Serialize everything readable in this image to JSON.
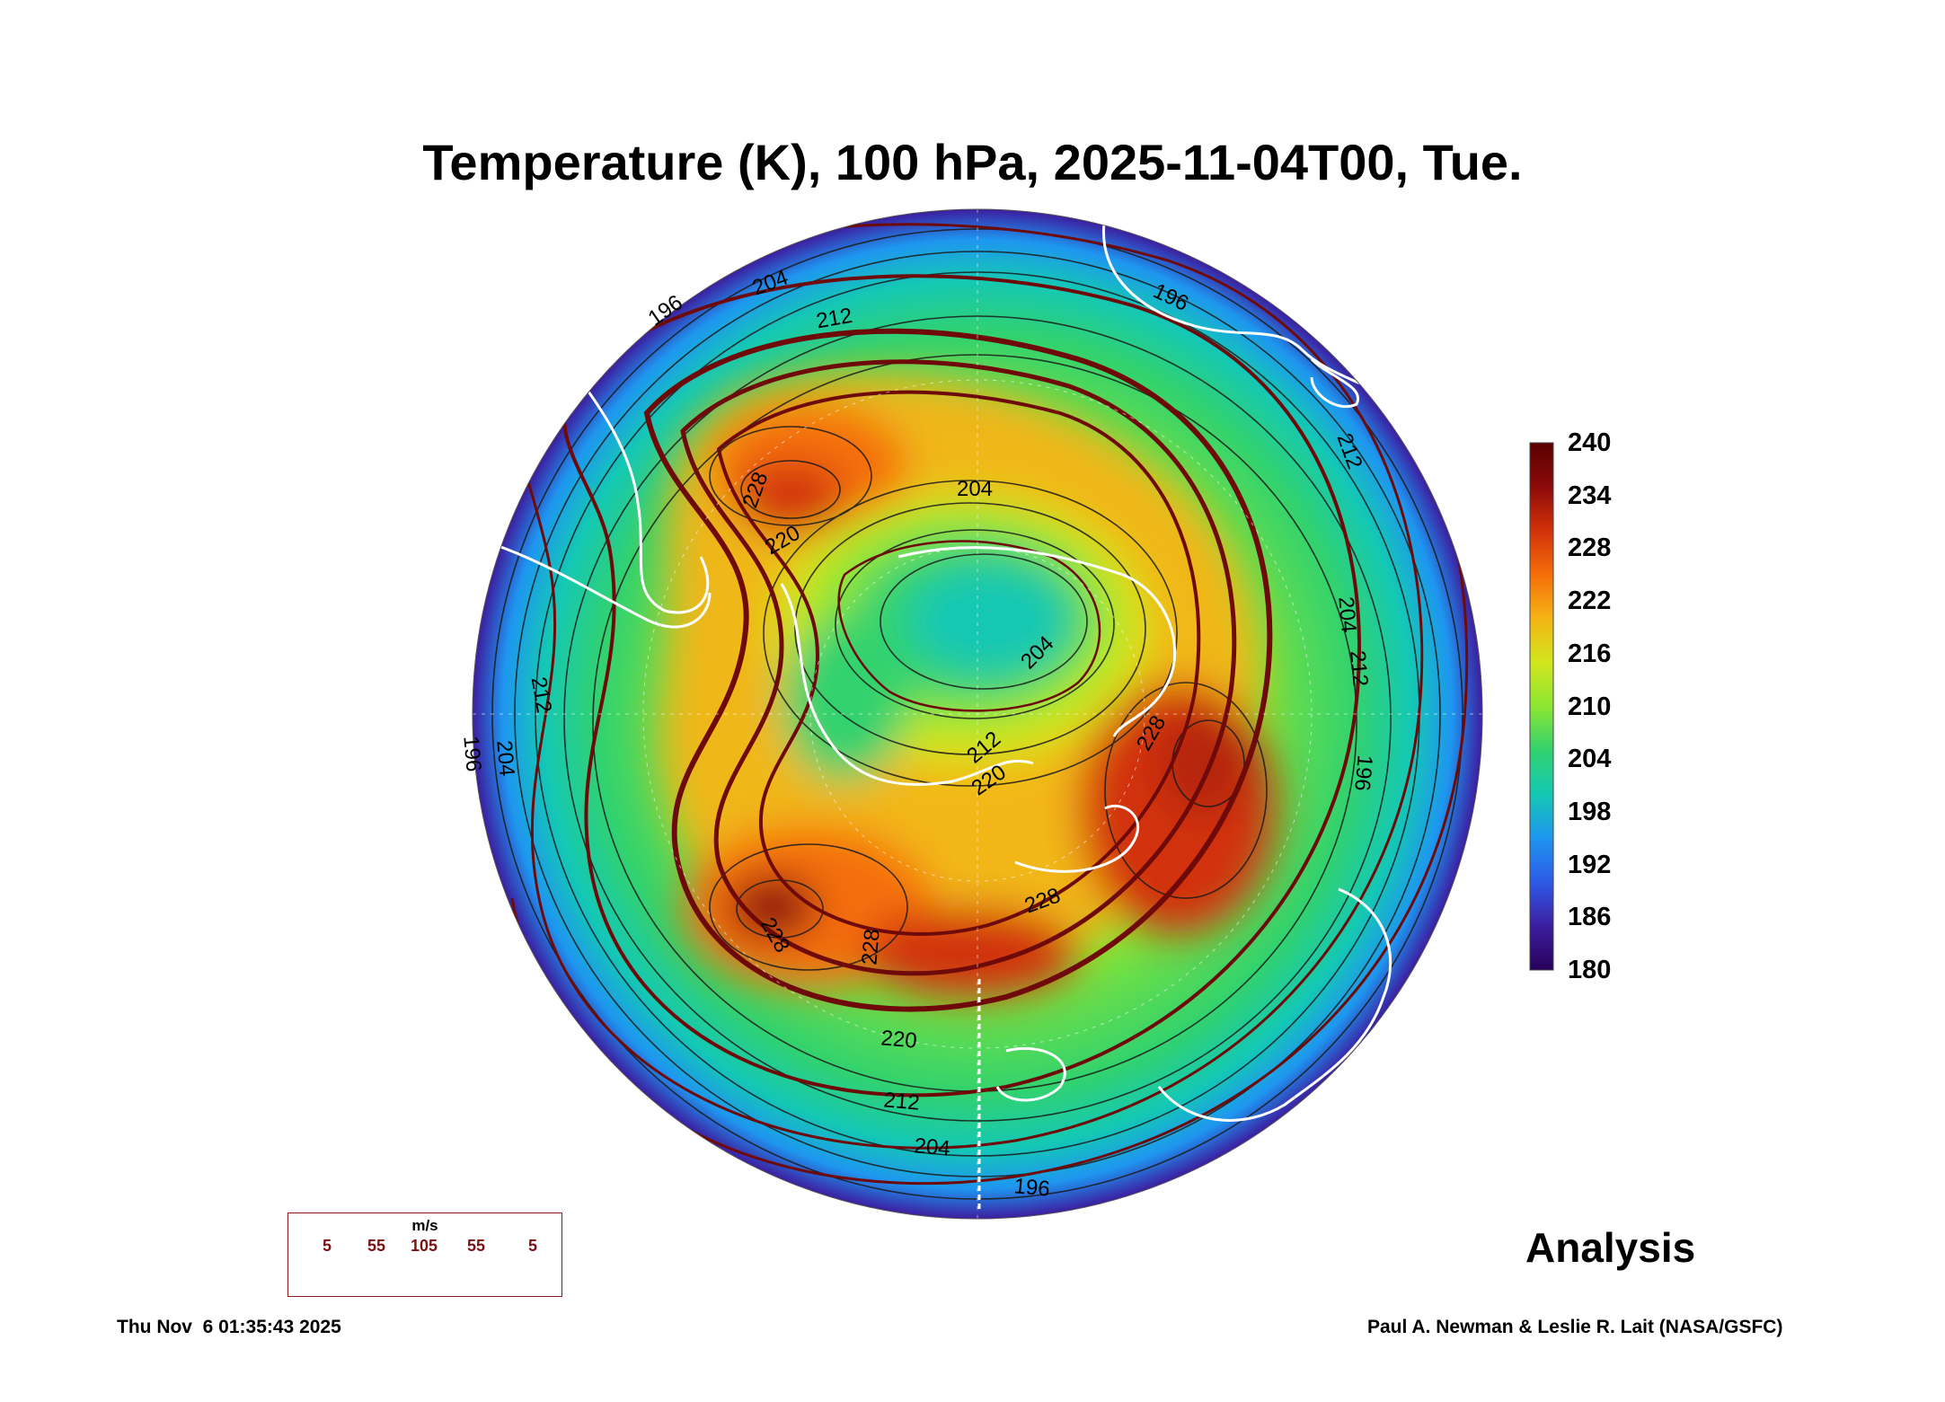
{
  "title": "Temperature (K), 100 hPa, 2025-11-04T00, Tue.",
  "product_label": "Analysis",
  "timestamp": "Thu Nov  6 01:35:43 2025",
  "credit": "Paul A. Newman & Leslie R. Lait (NASA/GSFC)",
  "colorbar": {
    "unit": "K",
    "min": 180,
    "max": 240,
    "ticks": [
      240,
      234,
      228,
      222,
      216,
      210,
      204,
      198,
      192,
      186,
      180
    ],
    "colors": [
      "#28005a",
      "#3c1ea0",
      "#2d5ae6",
      "#1e96f0",
      "#14c8b4",
      "#32d26e",
      "#8ce632",
      "#d2e61e",
      "#f5b414",
      "#f56e0a",
      "#d2320a",
      "#8c0a0a",
      "#5a0000"
    ]
  },
  "contour_labels": [
    "196",
    "204",
    "212",
    "196",
    "204",
    "212",
    "228",
    "220",
    "204",
    "212",
    "220",
    "228",
    "212",
    "196",
    "204",
    "228",
    "228",
    "228",
    "220",
    "212",
    "204",
    "196",
    "204",
    "212",
    "196"
  ],
  "wind_legend": {
    "unit": "m/s",
    "speeds": [
      "5",
      "55",
      "105",
      "55",
      "5"
    ]
  },
  "colors": {
    "streamline": "#6e0a0a",
    "coastline": "#ffffff",
    "legend_border": "#8b1a1a"
  }
}
